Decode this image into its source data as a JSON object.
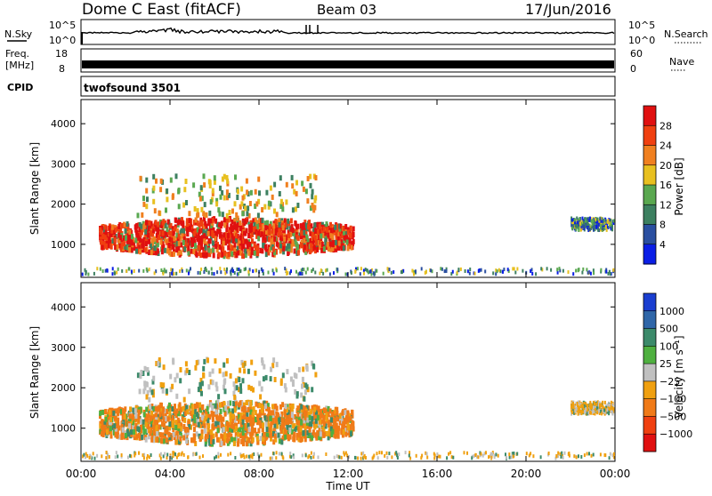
{
  "header": {
    "station": "Dome C East (fitACF)",
    "beam": "Beam 03",
    "date": "17/Jun/2016"
  },
  "top_panels": {
    "nsky_label": "N.Sky",
    "nsky_ticks": [
      "10^5",
      "10^0"
    ],
    "nsearch_label": "N.Search",
    "freq_label_1": "Freq.",
    "freq_label_2": "[MHz]",
    "freq_ticks": [
      "18",
      "8"
    ],
    "nave_label": "Nave",
    "nave_ticks": [
      "60",
      "0"
    ],
    "cpid_label": "CPID",
    "cpid_value": "twofsound 3501"
  },
  "chart_data": [
    {
      "type": "heatmap",
      "name": "power",
      "ylabel": "Slant Range [km]",
      "xlabel": "",
      "ylim": [
        180,
        4600
      ],
      "yticks": [
        "1000",
        "2000",
        "3000",
        "4000"
      ],
      "colorbar": {
        "label": "Power [dB]",
        "ticks": [
          "4",
          "8",
          "12",
          "16",
          "20",
          "24",
          "28"
        ],
        "colors": [
          "#0a1ee6",
          "#2a4fa0",
          "#3d8060",
          "#5aa850",
          "#e8c020",
          "#f08020",
          "#f04010",
          "#e01010"
        ],
        "range": [
          0,
          32
        ]
      },
      "regions": [
        {
          "t0": 0.8,
          "t1": 12.2,
          "r0": 700,
          "r1": 1650,
          "level": "high"
        },
        {
          "t0": 2.5,
          "t1": 10.5,
          "r0": 1700,
          "r1": 2700,
          "level": "scattered"
        },
        {
          "t0": 0.0,
          "t1": 24.0,
          "r0": 250,
          "r1": 400,
          "level": "low"
        },
        {
          "t0": 22.0,
          "t1": 23.9,
          "r0": 1350,
          "r1": 1650,
          "level": "low"
        }
      ]
    },
    {
      "type": "heatmap",
      "name": "velocity",
      "ylabel": "Slant Range [km]",
      "xlabel": "Time UT",
      "ylim": [
        180,
        4600
      ],
      "yticks": [
        "1000",
        "2000",
        "3000",
        "4000"
      ],
      "xticks": [
        "00:00",
        "04:00",
        "08:00",
        "12:00",
        "16:00",
        "20:00",
        "00:00"
      ],
      "colorbar": {
        "label": "Velocity [m s⁻¹]",
        "ticks": [
          "1000",
          "500",
          "100",
          "25",
          "−25",
          "−100",
          "−500",
          "−1000"
        ],
        "colors": [
          "#1a3ed0",
          "#2f66a8",
          "#3c8a6a",
          "#4fb040",
          "#c0c0c0",
          "#f0a010",
          "#f07a18",
          "#f04010",
          "#e01010"
        ],
        "range": [
          -1200,
          1200
        ]
      },
      "regions": [
        {
          "t0": 0.8,
          "t1": 12.2,
          "r0": 600,
          "r1": 1650,
          "level": "away"
        },
        {
          "t0": 2.5,
          "t1": 10.5,
          "r0": 1700,
          "r1": 2700,
          "level": "scattered"
        },
        {
          "t0": 0.0,
          "t1": 24.0,
          "r0": 250,
          "r1": 400,
          "level": "low"
        },
        {
          "t0": 22.0,
          "t1": 23.9,
          "r0": 1350,
          "r1": 1650,
          "level": "low"
        }
      ]
    }
  ]
}
